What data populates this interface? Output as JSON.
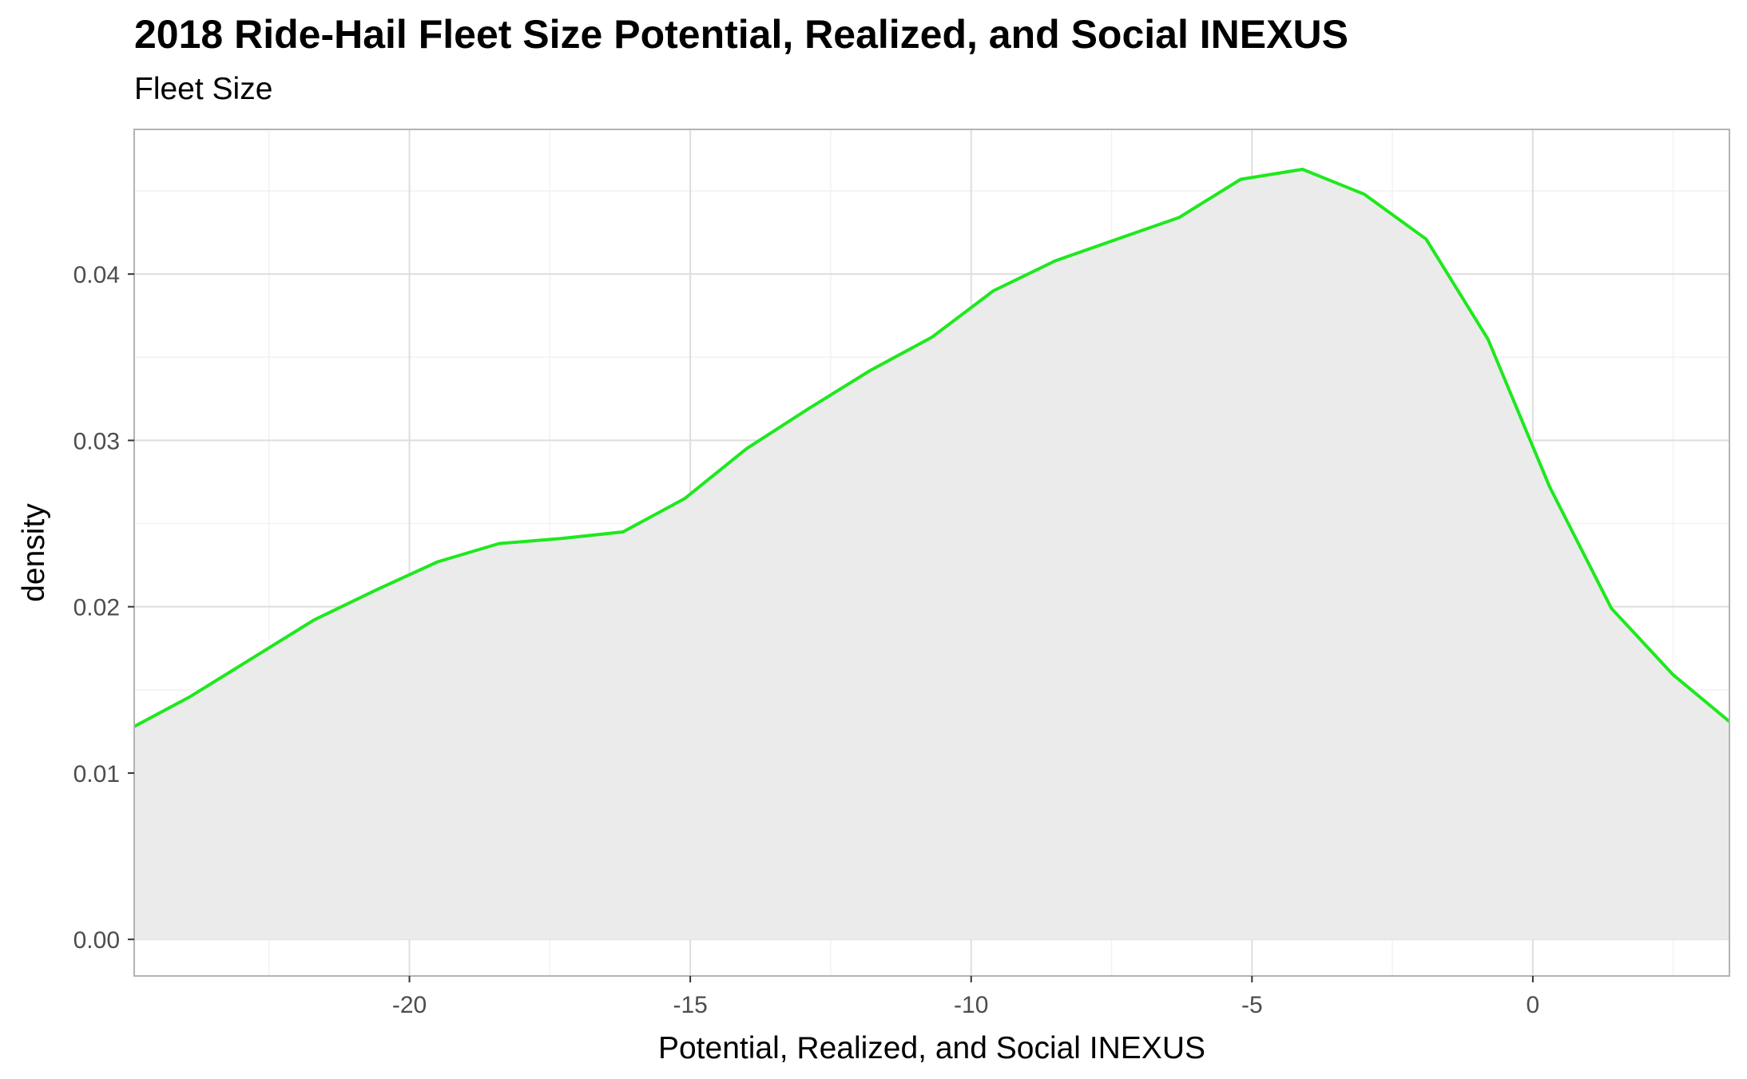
{
  "chart_data": {
    "type": "area",
    "title": "2018 Ride-Hail Fleet Size Potential, Realized, and Social INEXUS",
    "subtitle": "Fleet Size",
    "xlabel": "Potential, Realized, and Social INEXUS",
    "ylabel": "density",
    "xlim": [
      -24.9,
      3.5
    ],
    "ylim": [
      -0.0022,
      0.0487
    ],
    "x_ticks": [
      -20,
      -15,
      -10,
      -5,
      0
    ],
    "x_tick_labels": [
      "-20",
      "-15",
      "-10",
      "-5",
      "0"
    ],
    "y_ticks": [
      0.0,
      0.01,
      0.02,
      0.03,
      0.04
    ],
    "y_tick_labels": [
      "0.00",
      "0.01",
      "0.02",
      "0.03",
      "0.04"
    ],
    "grid": true,
    "line_color": "#1ee81e",
    "fill_color": "#ebebeb",
    "series": [
      {
        "x": [
          -24.9,
          -23.9,
          -22.8,
          -21.7,
          -20.6,
          -19.5,
          -18.4,
          -17.3,
          -16.2,
          -15.1,
          -14.0,
          -12.9,
          -11.8,
          -10.7,
          -9.6,
          -8.5,
          -7.4,
          -6.3,
          -5.2,
          -4.1,
          -3.0,
          -1.9,
          -0.8,
          0.3,
          1.4,
          2.5,
          3.5
        ],
        "values": [
          0.0128,
          0.0146,
          0.0169,
          0.0192,
          0.021,
          0.0227,
          0.0238,
          0.0241,
          0.0245,
          0.0265,
          0.0295,
          0.0319,
          0.0342,
          0.0362,
          0.039,
          0.0408,
          0.0421,
          0.0434,
          0.0457,
          0.0463,
          0.0448,
          0.0421,
          0.0361,
          0.0272,
          0.0199,
          0.0159,
          0.0131
        ]
      }
    ]
  }
}
